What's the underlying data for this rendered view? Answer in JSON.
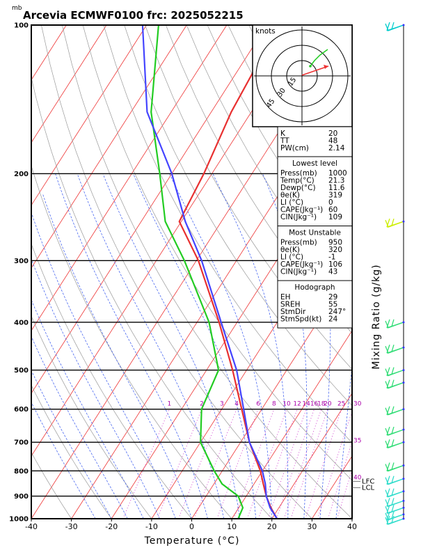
{
  "title": "Arcevia ECMWF0100  frc: 2025052215",
  "chart_data": {
    "type": "skew-t",
    "y_unit_label": "mb",
    "xlabel": "Temperature (°C)",
    "ylabel": "Mixing Ratio (g/kg)",
    "x_ticks": [
      "-40",
      "-30",
      "-20",
      "-10",
      "0",
      "10",
      "20",
      "30",
      "40"
    ],
    "xlim": [
      -40,
      40
    ],
    "p_ticks": [
      "100",
      "200",
      "300",
      "400",
      "500",
      "600",
      "700",
      "800",
      "900",
      "1000"
    ],
    "ylim_mb": [
      1000,
      100
    ],
    "y_scale": "log",
    "mixing_ratio_labels": [
      "1",
      "2",
      "3",
      "4",
      "6",
      "8",
      "10",
      "12",
      "14",
      "16",
      "18",
      "20",
      "25",
      "30",
      "35",
      "40"
    ],
    "level_labels": [
      "LFC",
      "LCL"
    ],
    "series": [
      {
        "name": "Temperature",
        "color": "#e83030",
        "points": [
          [
            1000,
            21.3
          ],
          [
            950,
            18
          ],
          [
            900,
            15
          ],
          [
            850,
            12.3
          ],
          [
            800,
            9.5
          ],
          [
            700,
            2.2
          ],
          [
            600,
            -5
          ],
          [
            500,
            -13.5
          ],
          [
            400,
            -24.5
          ],
          [
            300,
            -39.5
          ],
          [
            250,
            -50.5
          ],
          [
            200,
            -52
          ],
          [
            150,
            -55
          ],
          [
            100,
            -57
          ]
        ]
      },
      {
        "name": "Dewpoint",
        "color": "#22cc22",
        "points": [
          [
            1000,
            11.6
          ],
          [
            950,
            11
          ],
          [
            900,
            8
          ],
          [
            850,
            2
          ],
          [
            800,
            -2
          ],
          [
            700,
            -10
          ],
          [
            600,
            -15
          ],
          [
            500,
            -17
          ],
          [
            400,
            -27
          ],
          [
            300,
            -43
          ],
          [
            250,
            -54
          ],
          [
            200,
            -63
          ],
          [
            150,
            -75
          ],
          [
            100,
            -87
          ]
        ]
      },
      {
        "name": "Parcel",
        "color": "#4444ff",
        "points": [
          [
            1000,
            21.3
          ],
          [
            950,
            17.8
          ],
          [
            900,
            15
          ],
          [
            850,
            12.8
          ],
          [
            800,
            10
          ],
          [
            700,
            2.2
          ],
          [
            600,
            -4.5
          ],
          [
            500,
            -12.5
          ],
          [
            400,
            -24
          ],
          [
            300,
            -38.7
          ],
          [
            250,
            -49
          ],
          [
            200,
            -60
          ],
          [
            150,
            -76
          ],
          [
            100,
            -91
          ]
        ]
      }
    ],
    "hodograph": {
      "unit_label": "knots",
      "rings": [
        "15",
        "30",
        "45"
      ]
    },
    "table": {
      "top": [
        {
          "label": "K",
          "value": "20"
        },
        {
          "label": "TT",
          "value": "48"
        },
        {
          "label": "PW(cm)",
          "value": "2.14"
        }
      ],
      "lowest_level": {
        "header": "Lowest level",
        "rows": [
          {
            "label": "Press(mb)",
            "value": "1000"
          },
          {
            "label": "Temp(°C)",
            "value": "21.3"
          },
          {
            "label": "Dewp(°C)",
            "value": "11.6"
          },
          {
            "label": "θe(K)",
            "value": "319"
          },
          {
            "label": "LI  (°C)",
            "value": "0"
          },
          {
            "label": "CAPE(Jkg⁻¹)",
            "value": "60"
          },
          {
            "label": "CIN(Jkg⁻¹)",
            "value": "109"
          }
        ]
      },
      "most_unstable": {
        "header": "Most Unstable",
        "rows": [
          {
            "label": "Press(mb)",
            "value": "950"
          },
          {
            "label": "θe(K)",
            "value": "320"
          },
          {
            "label": "LI  (°C)",
            "value": "-1"
          },
          {
            "label": "CAPE(Jkg⁻¹)",
            "value": "106"
          },
          {
            "label": "CIN(Jkg⁻¹)",
            "value": "43"
          }
        ]
      },
      "hodograph": {
        "header": "Hodograph",
        "rows": [
          {
            "label": "EH",
            "value": "29"
          },
          {
            "label": "SREH",
            "value": "55"
          },
          {
            "label": "StmDir",
            "value": "247°"
          },
          {
            "label": "StmSpd(kt)",
            "value": "24"
          }
        ]
      }
    },
    "wind_barbs": [
      {
        "p": 100,
        "color": "#00cccc"
      },
      {
        "p": 250,
        "color": "#ccee00"
      },
      {
        "p": 400,
        "color": "#33dd77"
      },
      {
        "p": 450,
        "color": "#33dd77"
      },
      {
        "p": 500,
        "color": "#33dd77"
      },
      {
        "p": 530,
        "color": "#33dd77"
      },
      {
        "p": 600,
        "color": "#33dd77"
      },
      {
        "p": 660,
        "color": "#33dd77"
      },
      {
        "p": 700,
        "color": "#33dd77"
      },
      {
        "p": 780,
        "color": "#33dd77"
      },
      {
        "p": 830,
        "color": "#33ddcc"
      },
      {
        "p": 880,
        "color": "#33ddcc"
      },
      {
        "p": 920,
        "color": "#33ddcc"
      },
      {
        "p": 950,
        "color": "#33ddcc"
      },
      {
        "p": 980,
        "color": "#33ddcc"
      },
      {
        "p": 1000,
        "color": "#33ddcc"
      }
    ]
  }
}
